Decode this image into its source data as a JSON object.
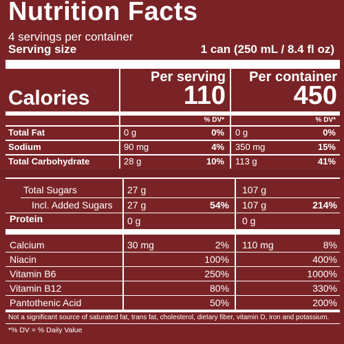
{
  "label": {
    "title": "Nutrition Facts",
    "servings": "4 servings per container",
    "serving_size_label": "Serving size",
    "serving_size_value": "1 can (250 mL / 8.4 fl oz)",
    "per_serving_header": "Per serving",
    "per_container_header": "Per container",
    "calories_label": "Calories",
    "calories_serving": "110",
    "calories_container": "450",
    "dv_header": "% DV*",
    "top_rows": [
      {
        "name": "Total Fat",
        "s_amt": "0 g",
        "s_dv": "0%",
        "c_amt": "0 g",
        "c_dv": "0%"
      },
      {
        "name": "Sodium",
        "s_amt": "90 mg",
        "s_dv": "4%",
        "c_amt": "350 mg",
        "c_dv": "15%"
      },
      {
        "name": "Total Carbohydrate",
        "s_amt": "28 g",
        "s_dv": "10%",
        "c_amt": "113 g",
        "c_dv": "41%"
      }
    ],
    "sugars": {
      "name": "Total Sugars",
      "s_amt": "27 g",
      "c_amt": "107 g"
    },
    "added_sugars": {
      "name": "Incl. Added Sugars",
      "s_amt": "27 g",
      "s_dv": "54%",
      "c_amt": "107 g",
      "c_dv": "214%"
    },
    "protein": {
      "name": "Protein",
      "s_amt": "0 g",
      "c_amt": "0 g"
    },
    "vitamins": [
      {
        "name": "Calcium",
        "s_amt": "30 mg",
        "s_dv": "2%",
        "c_amt": "110 mg",
        "c_dv": "8%"
      },
      {
        "name": "Niacin",
        "s_amt": "",
        "s_dv": "100%",
        "c_amt": "",
        "c_dv": "400%"
      },
      {
        "name": "Vitamin B6",
        "s_amt": "",
        "s_dv": "250%",
        "c_amt": "",
        "c_dv": "1000%"
      },
      {
        "name": "Vitamin B12",
        "s_amt": "",
        "s_dv": "80%",
        "c_amt": "",
        "c_dv": "330%"
      },
      {
        "name": "Pantothenic Acid",
        "s_amt": "",
        "s_dv": "50%",
        "c_amt": "",
        "c_dv": "200%"
      }
    ],
    "footnote_1": "Not a significant source of saturated fat, trans fat, cholesterol, dietary fiber, vitamin D, iron and potassium.",
    "footnote_2": "*% DV = % Daily Value"
  },
  "colors": {
    "background": "#7a2326",
    "text": "#ffffff"
  }
}
